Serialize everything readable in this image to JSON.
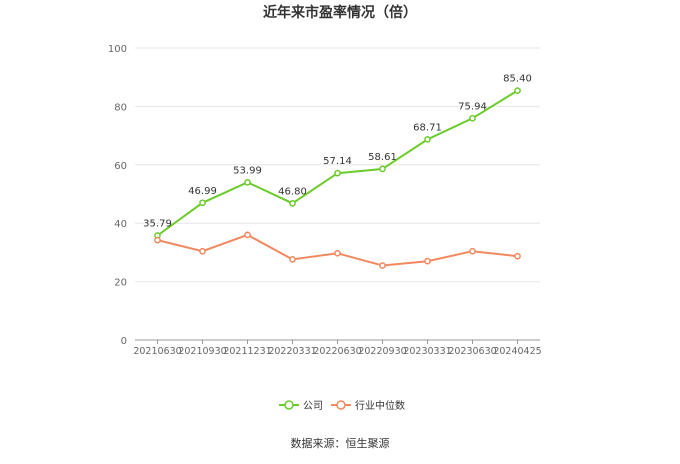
{
  "chart_data": {
    "type": "line",
    "title": "近年来市盈率情况（倍）",
    "categories": [
      "20210630",
      "20210930",
      "20211231",
      "20220331",
      "20220630",
      "20220930",
      "20230331",
      "20230630",
      "20240425"
    ],
    "ylim": [
      0,
      100
    ],
    "yticks": [
      0,
      20,
      40,
      60,
      80,
      100
    ],
    "grid": true,
    "legend_position": "bottom",
    "series": [
      {
        "name": "公司",
        "color": "#6bcb2a",
        "values": [
          35.79,
          46.99,
          53.99,
          46.8,
          57.14,
          58.61,
          68.71,
          75.94,
          85.4
        ],
        "labels": [
          "35.79",
          "46.99",
          "53.99",
          "46.80",
          "57.14",
          "58.61",
          "68.71",
          "75.94",
          "85.40"
        ]
      },
      {
        "name": "行业中位数",
        "color": "#f0895f",
        "values": [
          34.2,
          30.4,
          36.0,
          27.6,
          29.7,
          25.5,
          27.0,
          30.4,
          28.7
        ]
      }
    ],
    "source": "数据来源：恒生聚源"
  }
}
